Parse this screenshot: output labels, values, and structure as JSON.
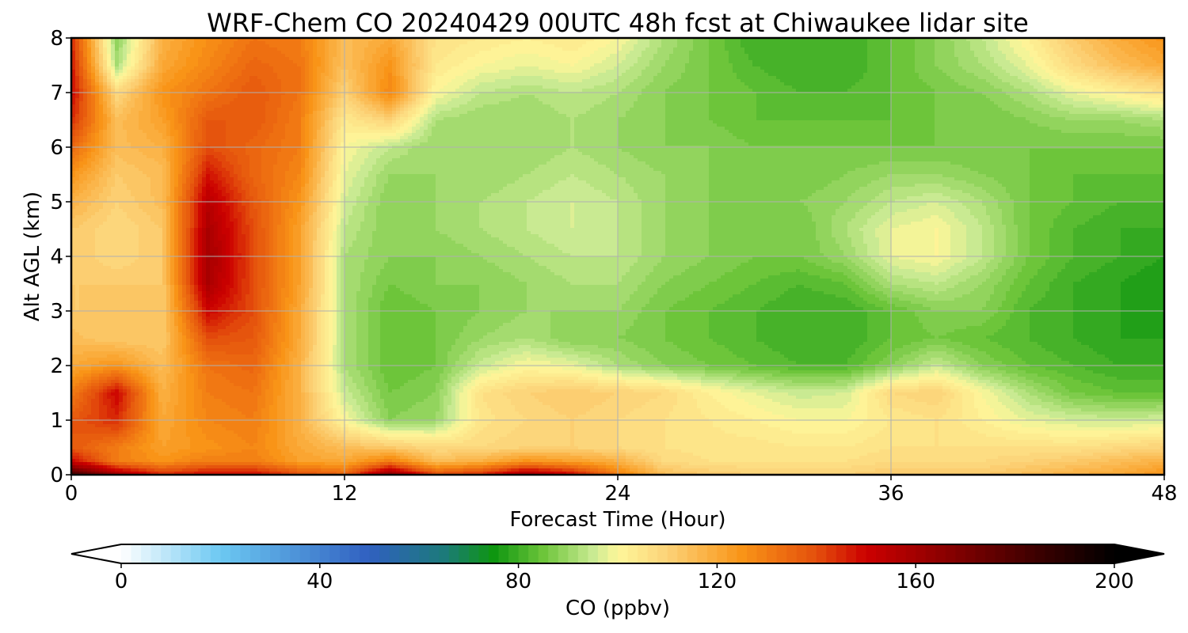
{
  "chart_data": {
    "type": "heatmap",
    "title": "WRF-Chem CO  20240429 00UTC 48h fcst at Chiwaukee lidar site",
    "xlabel": "Forecast Time (Hour)",
    "ylabel": "Alt AGL (km)",
    "xlim": [
      0,
      48
    ],
    "ylim": [
      0,
      8
    ],
    "xticks": [
      0,
      12,
      24,
      36,
      48
    ],
    "yticks": [
      0,
      1,
      2,
      3,
      4,
      5,
      6,
      7,
      8
    ],
    "grid": true,
    "x_hours": [
      0,
      2,
      4,
      6,
      8,
      10,
      12,
      14,
      16,
      18,
      20,
      22,
      24,
      26,
      28,
      30,
      32,
      34,
      36,
      38,
      40,
      42,
      44,
      46,
      48
    ],
    "y_km": [
      0,
      0.25,
      0.5,
      1,
      1.5,
      2,
      2.5,
      3,
      3.5,
      4,
      4.5,
      5,
      5.5,
      6,
      6.5,
      7,
      7.5,
      8
    ],
    "z_ppbv": [
      [
        185,
        160,
        145,
        150,
        150,
        140,
        135,
        165,
        140,
        145,
        160,
        150,
        130,
        115,
        112,
        110,
        110,
        110,
        112,
        112,
        112,
        115,
        118,
        120,
        125
      ],
      [
        150,
        130,
        125,
        130,
        130,
        122,
        120,
        130,
        115,
        118,
        125,
        122,
        118,
        108,
        106,
        106,
        106,
        106,
        108,
        108,
        108,
        110,
        112,
        115,
        118
      ],
      [
        138,
        130,
        122,
        125,
        128,
        120,
        115,
        112,
        108,
        108,
        110,
        110,
        108,
        106,
        105,
        105,
        104,
        104,
        106,
        106,
        106,
        106,
        106,
        108,
        110
      ],
      [
        138,
        145,
        120,
        128,
        130,
        118,
        100,
        88,
        90,
        105,
        108,
        110,
        108,
        106,
        104,
        102,
        100,
        100,
        104,
        106,
        102,
        98,
        96,
        95,
        96
      ],
      [
        130,
        150,
        118,
        130,
        132,
        118,
        95,
        86,
        88,
        106,
        110,
        112,
        110,
        108,
        102,
        98,
        95,
        96,
        108,
        110,
        100,
        92,
        86,
        84,
        84
      ],
      [
        120,
        125,
        115,
        132,
        135,
        118,
        92,
        84,
        86,
        95,
        100,
        98,
        92,
        88,
        86,
        84,
        82,
        82,
        88,
        95,
        88,
        84,
        82,
        80,
        80
      ],
      [
        115,
        112,
        112,
        140,
        138,
        120,
        92,
        84,
        86,
        90,
        92,
        88,
        88,
        86,
        84,
        82,
        80,
        80,
        84,
        86,
        84,
        82,
        80,
        78,
        78
      ],
      [
        112,
        112,
        112,
        150,
        140,
        120,
        92,
        84,
        86,
        88,
        90,
        90,
        90,
        86,
        84,
        82,
        80,
        80,
        84,
        88,
        88,
        82,
        80,
        78,
        76
      ],
      [
        112,
        112,
        112,
        158,
        140,
        122,
        92,
        86,
        88,
        88,
        90,
        92,
        92,
        88,
        86,
        84,
        82,
        84,
        92,
        94,
        90,
        84,
        80,
        78,
        76
      ],
      [
        112,
        108,
        112,
        160,
        140,
        122,
        92,
        88,
        88,
        90,
        92,
        94,
        94,
        90,
        88,
        86,
        86,
        90,
        98,
        100,
        94,
        86,
        82,
        80,
        78
      ],
      [
        112,
        108,
        112,
        158,
        140,
        122,
        94,
        88,
        90,
        92,
        94,
        96,
        94,
        90,
        88,
        86,
        86,
        92,
        98,
        100,
        94,
        86,
        82,
        80,
        80
      ],
      [
        118,
        110,
        115,
        155,
        138,
        125,
        96,
        88,
        90,
        92,
        94,
        96,
        94,
        90,
        88,
        86,
        88,
        90,
        94,
        96,
        92,
        86,
        84,
        82,
        82
      ],
      [
        125,
        112,
        115,
        148,
        135,
        128,
        98,
        90,
        90,
        90,
        92,
        94,
        92,
        90,
        88,
        86,
        86,
        88,
        90,
        90,
        88,
        86,
        84,
        84,
        84
      ],
      [
        135,
        115,
        118,
        140,
        135,
        130,
        100,
        94,
        90,
        90,
        90,
        92,
        90,
        88,
        88,
        86,
        86,
        86,
        86,
        86,
        86,
        86,
        86,
        86,
        86
      ],
      [
        145,
        115,
        122,
        138,
        138,
        130,
        104,
        110,
        92,
        90,
        90,
        92,
        90,
        88,
        86,
        84,
        84,
        84,
        84,
        86,
        86,
        88,
        90,
        90,
        92
      ],
      [
        150,
        108,
        125,
        132,
        138,
        132,
        110,
        128,
        100,
        94,
        92,
        94,
        92,
        88,
        86,
        84,
        82,
        82,
        84,
        86,
        88,
        92,
        98,
        102,
        106
      ],
      [
        148,
        92,
        120,
        128,
        135,
        132,
        114,
        125,
        104,
        100,
        98,
        100,
        96,
        90,
        86,
        82,
        80,
        80,
        84,
        88,
        92,
        98,
        108,
        115,
        120
      ],
      [
        145,
        88,
        118,
        126,
        132,
        130,
        115,
        120,
        106,
        104,
        102,
        104,
        100,
        92,
        86,
        80,
        80,
        80,
        84,
        88,
        94,
        102,
        112,
        120,
        125
      ]
    ],
    "colorbar": {
      "label": "CO  (ppbv)",
      "ticks": [
        0,
        40,
        80,
        120,
        160,
        200
      ],
      "range": [
        0,
        200
      ],
      "extend": "both",
      "levels": 100,
      "stops": [
        {
          "v": 0,
          "c": "#ffffff"
        },
        {
          "v": 20,
          "c": "#6cc8f2"
        },
        {
          "v": 50,
          "c": "#3060c0"
        },
        {
          "v": 65,
          "c": "#1c7a7a"
        },
        {
          "v": 75,
          "c": "#0e9610"
        },
        {
          "v": 85,
          "c": "#6dc53a"
        },
        {
          "v": 95,
          "c": "#c9ea92"
        },
        {
          "v": 100,
          "c": "#fef79a"
        },
        {
          "v": 110,
          "c": "#fcd277"
        },
        {
          "v": 125,
          "c": "#f99417"
        },
        {
          "v": 140,
          "c": "#e44f0c"
        },
        {
          "v": 150,
          "c": "#cc0000"
        },
        {
          "v": 165,
          "c": "#8e0000"
        },
        {
          "v": 185,
          "c": "#3a0000"
        },
        {
          "v": 200,
          "c": "#000000"
        }
      ]
    }
  }
}
